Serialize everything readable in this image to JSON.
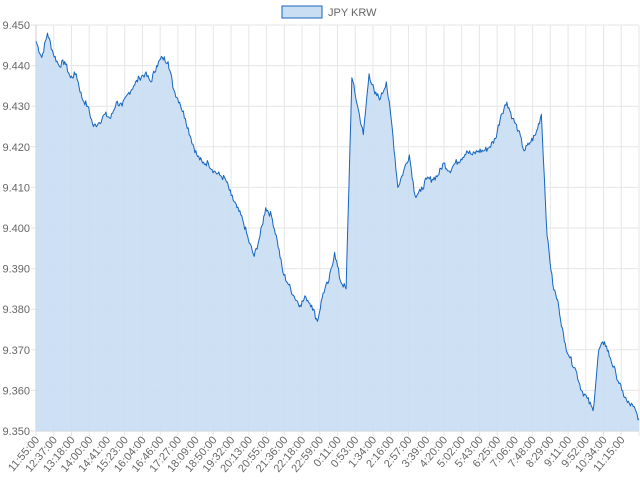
{
  "chart_data": {
    "type": "area",
    "legend": {
      "label": "JPY KRW",
      "position": "top-center"
    },
    "colors": {
      "line": "#1565c0",
      "fill": "#c9ddf3",
      "grid": "#e6e6e6",
      "axis_text": "#666666"
    },
    "grid": true,
    "ylim": [
      9.35,
      9.45
    ],
    "y_ticks": [
      "9.350",
      "9.360",
      "9.370",
      "9.380",
      "9.390",
      "9.400",
      "9.410",
      "9.420",
      "9.430",
      "9.440",
      "9.450"
    ],
    "x_ticks": [
      "11:55:00",
      "12:37:00",
      "13:18:00",
      "14:00:00",
      "14:41:00",
      "15:23:00",
      "16:04:00",
      "16:46:00",
      "17:27:00",
      "18:09:00",
      "18:50:00",
      "19:32:00",
      "20:13:00",
      "20:55:00",
      "21:36:00",
      "22:18:00",
      "22:59:00",
      "0:11:00",
      "0:53:00",
      "1:34:00",
      "2:16:00",
      "2:57:00",
      "3:39:00",
      "4:20:00",
      "5:02:00",
      "5:43:00",
      "6:25:00",
      "7:06:00",
      "7:48:00",
      "8:29:00",
      "9:11:00",
      "9:52:00",
      "10:34:00",
      "11:15:00"
    ],
    "series": [
      {
        "name": "JPY KRW",
        "values": [
          9.446,
          9.442,
          9.448,
          9.443,
          9.44,
          9.441,
          9.437,
          9.438,
          9.432,
          9.43,
          9.425,
          9.426,
          9.428,
          9.427,
          9.431,
          9.43,
          9.433,
          9.435,
          9.437,
          9.438,
          9.436,
          9.44,
          9.442,
          9.441,
          9.434,
          9.431,
          9.427,
          9.422,
          9.418,
          9.416,
          9.416,
          9.414,
          9.413,
          9.412,
          9.408,
          9.405,
          9.402,
          9.397,
          9.393,
          9.398,
          9.405,
          9.403,
          9.397,
          9.389,
          9.386,
          9.383,
          9.381,
          9.383,
          9.381,
          9.377,
          9.384,
          9.387,
          9.394,
          9.387,
          9.385,
          9.437,
          9.43,
          9.423,
          9.438,
          9.433,
          9.432,
          9.436,
          9.425,
          9.41,
          9.414,
          9.418,
          9.408,
          9.409,
          9.412,
          9.412,
          9.413,
          9.416,
          9.414,
          9.416,
          9.417,
          9.419,
          9.418,
          9.419,
          9.419,
          9.42,
          9.422,
          9.428,
          9.431,
          9.427,
          9.424,
          9.419,
          9.421,
          9.423,
          9.428,
          9.398,
          9.386,
          9.381,
          9.372,
          9.368,
          9.365,
          9.36,
          9.358,
          9.355,
          9.37,
          9.372,
          9.368,
          9.364,
          9.36,
          9.357,
          9.356,
          9.353
        ]
      }
    ]
  }
}
